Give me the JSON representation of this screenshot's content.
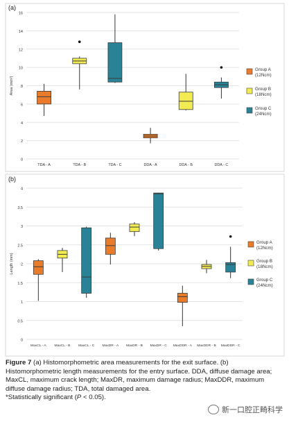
{
  "chart_data": [
    {
      "type": "box",
      "panel_label": "(a)",
      "ylabel": "Area (mm²)",
      "ylim": [
        0,
        16
      ],
      "yticks": [
        0,
        2,
        4,
        6,
        8,
        10,
        12,
        14,
        16
      ],
      "grid": true,
      "categories": [
        "TDA - A",
        "TDA - B",
        "TDA - C",
        "DDA - A",
        "DDA - B",
        "DDA - C"
      ],
      "boxes": [
        {
          "group": "A",
          "whisker_low": 4.7,
          "q1": 6.0,
          "median": 6.8,
          "q3": 7.4,
          "whisker_high": 8.2,
          "outliers": []
        },
        {
          "group": "B",
          "whisker_low": 7.6,
          "q1": 10.4,
          "median": 10.7,
          "q3": 11.0,
          "whisker_high": 11.2,
          "outliers": [
            12.8
          ]
        },
        {
          "group": "C",
          "whisker_low": 8.3,
          "q1": 8.4,
          "median": 8.8,
          "q3": 12.7,
          "whisker_high": 15.8,
          "outliers": []
        },
        {
          "group": "A",
          "whisker_low": 1.7,
          "q1": 2.3,
          "median": 2.5,
          "q3": 2.7,
          "whisker_high": 3.4,
          "outliers": []
        },
        {
          "group": "B",
          "whisker_low": 5.3,
          "q1": 5.4,
          "median": 6.3,
          "q3": 7.3,
          "whisker_high": 9.3,
          "outliers": []
        },
        {
          "group": "C",
          "whisker_low": 6.6,
          "q1": 7.8,
          "median": 8.1,
          "q3": 8.4,
          "whisker_high": 8.9,
          "outliers": [
            10.0
          ]
        }
      ]
    },
    {
      "type": "box",
      "panel_label": "(b)",
      "ylabel": "Length (mm)",
      "ylim": [
        0,
        4
      ],
      "yticks": [
        0,
        0.5,
        1,
        1.5,
        2,
        2.5,
        3,
        3.5,
        4
      ],
      "grid": true,
      "categories": [
        "MaxCL - A",
        "MaxCL - B",
        "MaxCL - C",
        "MaxDR - A",
        "MaxDR - B",
        "MaxDR - C",
        "MaxDDR - A",
        "MaxDDR - B",
        "MaxDDR - C"
      ],
      "boxes": [
        {
          "group": "A",
          "whisker_low": 1.02,
          "q1": 1.72,
          "median": 1.92,
          "q3": 2.08,
          "whisker_high": 2.12,
          "outliers": []
        },
        {
          "group": "B",
          "whisker_low": 1.78,
          "q1": 2.15,
          "median": 2.25,
          "q3": 2.35,
          "whisker_high": 2.42,
          "outliers": []
        },
        {
          "group": "C",
          "whisker_low": 1.1,
          "q1": 1.22,
          "median": 1.65,
          "q3": 2.95,
          "whisker_high": 2.98,
          "outliers": []
        },
        {
          "group": "A",
          "whisker_low": 1.98,
          "q1": 2.25,
          "median": 2.48,
          "q3": 2.68,
          "whisker_high": 2.82,
          "outliers": []
        },
        {
          "group": "B",
          "whisker_low": 2.73,
          "q1": 2.85,
          "median": 2.97,
          "q3": 3.05,
          "whisker_high": 3.1,
          "outliers": []
        },
        {
          "group": "C",
          "whisker_low": 2.35,
          "q1": 2.4,
          "median": 3.85,
          "q3": 3.87,
          "whisker_high": 3.88,
          "outliers": []
        },
        {
          "group": "A",
          "whisker_low": 0.35,
          "q1": 0.98,
          "median": 1.13,
          "q3": 1.22,
          "whisker_high": 1.42,
          "outliers": []
        },
        {
          "group": "B",
          "whisker_low": 1.75,
          "q1": 1.87,
          "median": 1.93,
          "q3": 1.98,
          "whisker_high": 2.1,
          "outliers": []
        },
        {
          "group": "C",
          "whisker_low": 1.62,
          "q1": 1.78,
          "median": 1.98,
          "q3": 2.03,
          "whisker_high": 2.45,
          "outliers": [
            2.72
          ]
        }
      ]
    }
  ],
  "legend": {
    "placement": "right",
    "items": [
      {
        "key": "A",
        "label1": "Group A",
        "label2": "(12Ncm)",
        "color": "#e87c2b"
      },
      {
        "key": "B",
        "label1": "Group B",
        "label2": "(18Ncm)",
        "color": "#f2ec52"
      },
      {
        "key": "C",
        "label1": "Group C",
        "label2": "(24Ncm)",
        "color": "#2a8296"
      }
    ]
  },
  "colors": {
    "A": "#e87c2b",
    "B": "#f2ec52",
    "C": "#2a8296",
    "grid": "#e3e3e3",
    "box_stroke": "#3a3a3a",
    "whisker": "#333333"
  },
  "caption": {
    "figure": "Figure 7",
    "part_a_label": "(a)",
    "part_a_text": "Histomorphometric area measurements for the exit surface.",
    "part_b_label": "(b)",
    "part_b_text": "Histomorphometric length measurements for the entry surface. DDA, diffuse damage area; MaxCL, maximum crack length; MaxDR, maximum damage radius; MaxDDR, maximum diffuse damage radius; TDA, total damaged area.",
    "significance_prefix": "*Statistically significant (",
    "significance_p": "P",
    "significance_suffix": " < 0.05)."
  },
  "watermark": {
    "text": "新一口腔正畸科学",
    "icon": "wechat-icon"
  }
}
